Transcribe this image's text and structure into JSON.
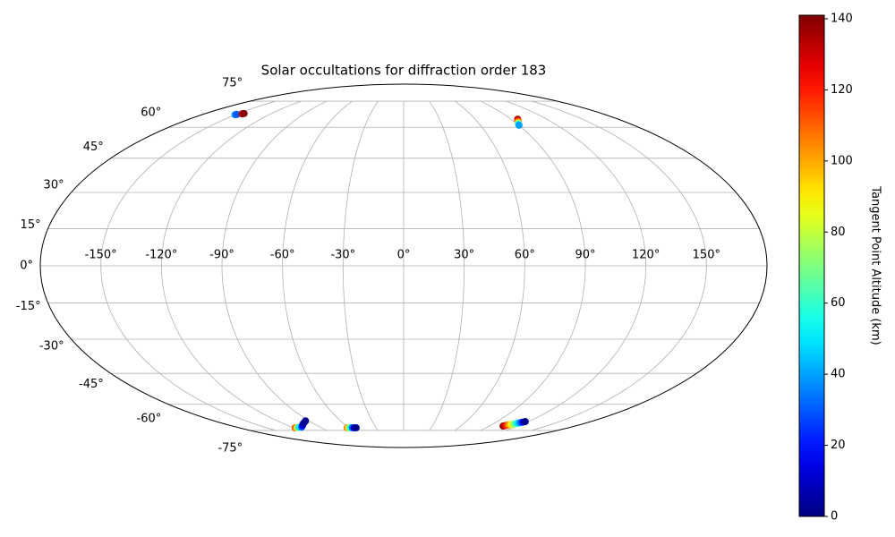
{
  "chart_data": {
    "type": "scatter",
    "projection": "mollweide",
    "title": "Solar occultations for diffraction order 183",
    "colorbar_label": "Tangent Point Altitude (km)",
    "colormap": "jet",
    "clim": [
      0,
      141
    ],
    "cticks": [
      0,
      20,
      40,
      60,
      80,
      100,
      120,
      140
    ],
    "grid": true,
    "xticks": [
      {
        "value": -150,
        "label": "-150°"
      },
      {
        "value": -120,
        "label": "-120°"
      },
      {
        "value": -90,
        "label": "-90°"
      },
      {
        "value": -60,
        "label": "-60°"
      },
      {
        "value": -30,
        "label": "-30°"
      },
      {
        "value": 0,
        "label": "0°"
      },
      {
        "value": 30,
        "label": "30°"
      },
      {
        "value": 60,
        "label": "60°"
      },
      {
        "value": 90,
        "label": "90°"
      },
      {
        "value": 120,
        "label": "120°"
      },
      {
        "value": 150,
        "label": "150°"
      }
    ],
    "yticks": [
      {
        "value": -75,
        "label": "-75°"
      },
      {
        "value": -60,
        "label": "-60°"
      },
      {
        "value": -45,
        "label": "-45°"
      },
      {
        "value": -30,
        "label": "-30°"
      },
      {
        "value": -15,
        "label": "-15°"
      },
      {
        "value": 0,
        "label": "0°"
      },
      {
        "value": 15,
        "label": "15°"
      },
      {
        "value": 30,
        "label": "30°"
      },
      {
        "value": 45,
        "label": "45°"
      },
      {
        "value": 60,
        "label": "60°"
      },
      {
        "value": 75,
        "label": "75°"
      }
    ],
    "x": [
      -150.5,
      -150,
      -149.5,
      -146,
      -145.5,
      -145,
      95.6,
      94.8,
      94,
      93.2,
      92.4,
      91.6,
      90.8,
      90.2,
      -118.7,
      -116,
      -113,
      -109.4,
      -105.5,
      -101.6,
      -97,
      -93.3,
      -61.8,
      -60,
      -58,
      -56,
      -54,
      -52,
      104.5,
      105.5,
      106.4,
      107.4,
      108.3,
      109.3,
      110.2,
      111.2,
      112.1,
      113.1,
      114.0,
      115.0,
      116.0,
      117.0
    ],
    "y": [
      66.8,
      66.9,
      67,
      67.3,
      67.4,
      67.5,
      64.3,
      63.9,
      63.4,
      63,
      62.6,
      62.1,
      61.6,
      61.1,
      -73.3,
      -73.2,
      -73,
      -72.8,
      -72,
      -71,
      -70,
      -69.1,
      -73.3,
      -73.3,
      -73.3,
      -73.3,
      -73.3,
      -73.3,
      -72.2,
      -72.0,
      -71.8,
      -71.6,
      -71.4,
      -71.2,
      -71.0,
      -70.8,
      -70.6,
      -70.4,
      -70.2,
      -70.0,
      -69.8,
      -69.5
    ],
    "color_values": [
      40,
      35,
      30,
      130,
      135,
      140,
      140,
      130,
      120,
      110,
      100,
      80,
      55,
      40,
      110,
      80,
      50,
      30,
      15,
      8,
      4,
      2,
      105,
      80,
      55,
      30,
      10,
      2,
      140,
      130,
      120,
      110,
      100,
      90,
      80,
      70,
      60,
      50,
      40,
      30,
      15,
      2
    ]
  }
}
